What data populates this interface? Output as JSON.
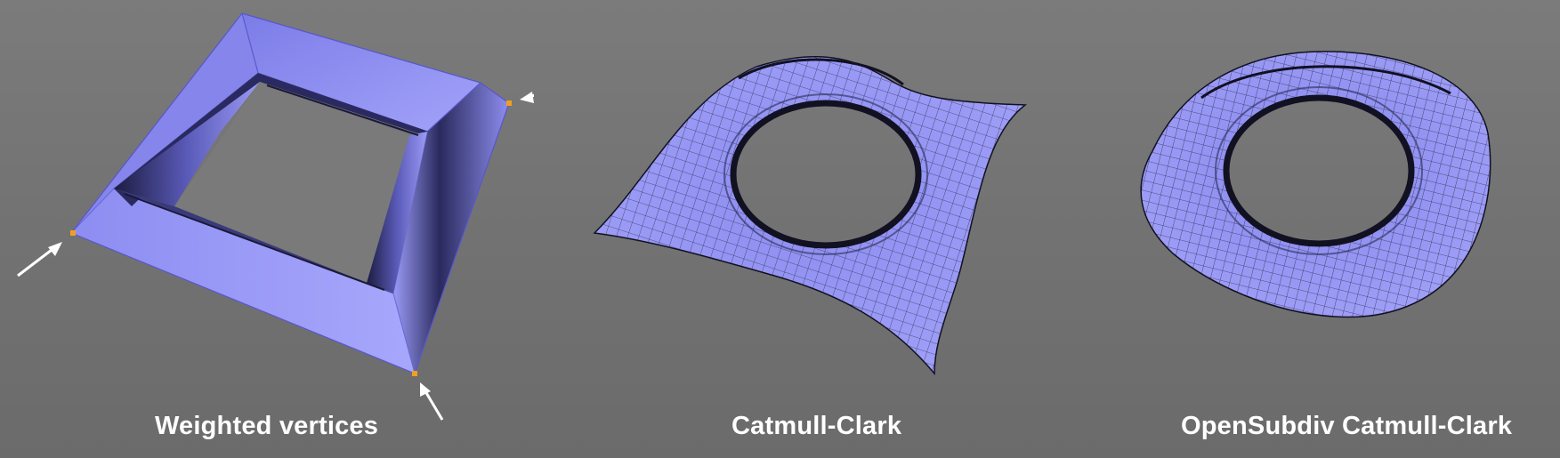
{
  "panels": [
    {
      "caption": "Weighted vertices",
      "base_color": "#9a9af5",
      "weight_marker_color": "#f0a020",
      "arrow_color": "#ffffff"
    },
    {
      "caption": "Catmull-Clark",
      "base_color": "#9a9af5",
      "wire_color": "#1a1a33"
    },
    {
      "caption": "OpenSubdiv Catmull-Clark",
      "base_color": "#9a9af5",
      "wire_color": "#1a1a33"
    }
  ]
}
